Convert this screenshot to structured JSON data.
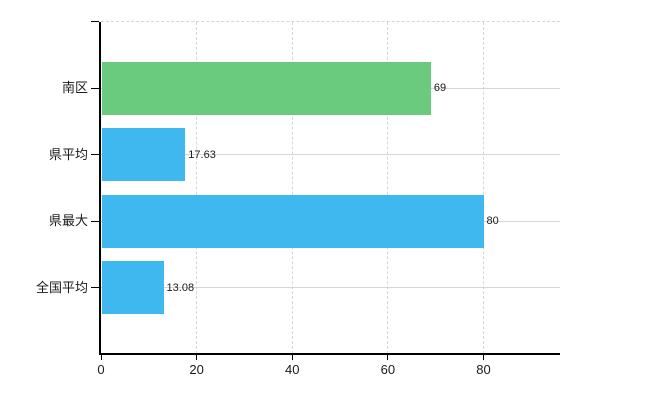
{
  "chart_data": {
    "type": "bar",
    "orientation": "horizontal",
    "categories": [
      "南区",
      "県平均",
      "県最大",
      "全国平均"
    ],
    "values": [
      69,
      17.63,
      80,
      13.08
    ],
    "value_labels": [
      "69",
      "17.63",
      "80",
      "13.08"
    ],
    "series": [
      {
        "name": "value",
        "values": [
          69,
          17.63,
          80,
          13.08
        ]
      }
    ],
    "bar_colors": [
      "#6aca7e",
      "#3fb8f0",
      "#3fb8f0",
      "#3fb8f0"
    ],
    "x_ticks": [
      0,
      20,
      40,
      60,
      80
    ],
    "x_tick_labels": [
      "0",
      "20",
      "40",
      "60",
      "80"
    ],
    "xlim": [
      0,
      96
    ],
    "grid": true,
    "legend": false
  },
  "colors": {
    "bar_green": "#6aca7e",
    "bar_blue": "#3fb8f0",
    "grid_line": "#d3d8d3",
    "axis_line": "#000000",
    "text": "#1a1a1a",
    "background": "#ffffff"
  }
}
